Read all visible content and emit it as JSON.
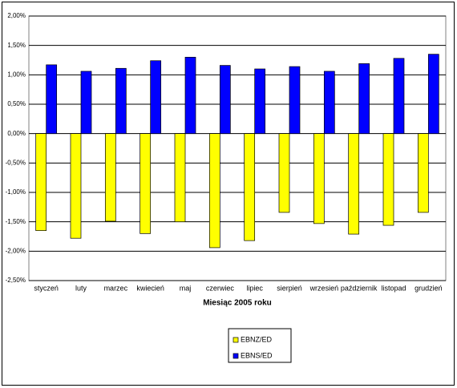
{
  "chart_data": {
    "type": "bar",
    "x_label": "Miesiąc 2005 roku",
    "categories": [
      "styczeń",
      "luty",
      "marzec",
      "kwiecień",
      "maj",
      "czerwiec",
      "lipiec",
      "sierpień",
      "wrzesień",
      "październik",
      "listopad",
      "grudzień"
    ],
    "series": [
      {
        "name": "EBNZ/ED",
        "color": "#ffff00",
        "values": [
          -1.65,
          -1.78,
          -1.49,
          -1.7,
          -1.5,
          -1.94,
          -1.82,
          -1.34,
          -1.53,
          -1.71,
          -1.56,
          -1.34
        ]
      },
      {
        "name": "EBNS/ED",
        "color": "#0000ff",
        "values": [
          1.17,
          1.06,
          1.11,
          1.24,
          1.3,
          1.16,
          1.1,
          1.14,
          1.06,
          1.19,
          1.28,
          1.35
        ]
      }
    ],
    "ylim": [
      -2.5,
      2.0
    ],
    "yticks": [
      {
        "value": -2.5,
        "label": "-2,50%"
      },
      {
        "value": -2.0,
        "label": "-2,00%"
      },
      {
        "value": -1.5,
        "label": "-1,50%"
      },
      {
        "value": -1.0,
        "label": "-1,00%"
      },
      {
        "value": -0.5,
        "label": "-0,50%"
      },
      {
        "value": 0,
        "label": "0,00%"
      },
      {
        "value": 0.5,
        "label": "0,50%"
      },
      {
        "value": 1.0,
        "label": "1,00%"
      },
      {
        "value": 1.5,
        "label": "1,50%"
      },
      {
        "value": 2.0,
        "label": "2,00%"
      }
    ],
    "grid": true,
    "legend": "bottom"
  }
}
